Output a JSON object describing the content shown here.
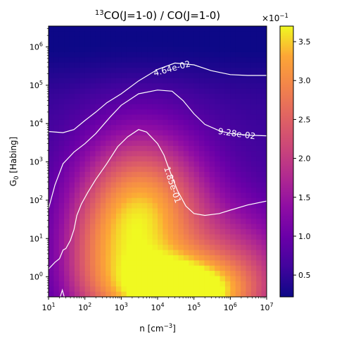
{
  "chart_data": {
    "type": "heatmap",
    "title_sup": "13",
    "title_main": "CO(J=1-0) / CO(J=1-0)",
    "xlabel_main": "n [cm",
    "xlabel_sup": "−3",
    "xlabel_end": "]",
    "ylabel_main": "G",
    "ylabel_sub": "0",
    "ylabel_end": " [Habing]",
    "x_scale": "log",
    "y_scale": "log",
    "xlim": [
      10,
      10000000
    ],
    "ylim": [
      0.3,
      3500000
    ],
    "x_ticks": [
      {
        "value": 10,
        "base": "10",
        "exp": "1"
      },
      {
        "value": 100,
        "base": "10",
        "exp": "2"
      },
      {
        "value": 1000,
        "base": "10",
        "exp": "3"
      },
      {
        "value": 10000,
        "base": "10",
        "exp": "4"
      },
      {
        "value": 100000,
        "base": "10",
        "exp": "5"
      },
      {
        "value": 1000000,
        "base": "10",
        "exp": "6"
      },
      {
        "value": 10000000,
        "base": "10",
        "exp": "7"
      }
    ],
    "y_ticks": [
      {
        "value": 1,
        "base": "10",
        "exp": "0"
      },
      {
        "value": 10,
        "base": "10",
        "exp": "1"
      },
      {
        "value": 100,
        "base": "10",
        "exp": "2"
      },
      {
        "value": 1000,
        "base": "10",
        "exp": "3"
      },
      {
        "value": 10000,
        "base": "10",
        "exp": "4"
      },
      {
        "value": 100000,
        "base": "10",
        "exp": "5"
      },
      {
        "value": 1000000,
        "base": "10",
        "exp": "6"
      }
    ],
    "colormap": "plasma",
    "colorbar": {
      "min": 0.22,
      "max": 3.7,
      "ticks": [
        "0.5",
        "1.0",
        "1.5",
        "2.0",
        "2.5",
        "3.0",
        "3.5"
      ],
      "tick_values": [
        0.5,
        1.0,
        1.5,
        2.0,
        2.5,
        3.0,
        3.5
      ],
      "multiplier_base": "×10",
      "multiplier_exp": "−1"
    },
    "contours": [
      {
        "level": 0.0464,
        "label": "4.64e-02",
        "points": [
          [
            10,
            6200
          ],
          [
            25,
            5800
          ],
          [
            50,
            7000
          ],
          [
            100,
            12000
          ],
          [
            200,
            20000
          ],
          [
            400,
            35000
          ],
          [
            1000,
            60000
          ],
          [
            3000,
            130000
          ],
          [
            10000,
            260000
          ],
          [
            30000,
            380000
          ],
          [
            100000,
            340000
          ],
          [
            300000,
            240000
          ],
          [
            1000000,
            190000
          ],
          [
            3000000,
            180000
          ],
          [
            10000000,
            180000
          ]
        ]
      },
      {
        "level": 0.0928,
        "label": "9.28e-02",
        "points": [
          [
            10,
            60
          ],
          [
            15,
            250
          ],
          [
            25,
            900
          ],
          [
            50,
            1800
          ],
          [
            100,
            3000
          ],
          [
            200,
            5500
          ],
          [
            500,
            15000
          ],
          [
            1000,
            30000
          ],
          [
            3000,
            60000
          ],
          [
            10000,
            75000
          ],
          [
            25000,
            70000
          ],
          [
            50000,
            40000
          ],
          [
            100000,
            18000
          ],
          [
            200000,
            9500
          ],
          [
            500000,
            6500
          ],
          [
            1000000,
            5500
          ],
          [
            3000000,
            5000
          ],
          [
            10000000,
            4800
          ]
        ]
      },
      {
        "level": 0.185,
        "label": "1.85e-01",
        "points": [
          [
            10,
            1.6
          ],
          [
            15,
            2.4
          ],
          [
            20,
            3.0
          ],
          [
            25,
            5
          ],
          [
            30,
            5.5
          ],
          [
            40,
            9
          ],
          [
            50,
            17
          ],
          [
            60,
            40
          ],
          [
            80,
            80
          ],
          [
            120,
            160
          ],
          [
            200,
            350
          ],
          [
            400,
            900
          ],
          [
            800,
            2500
          ],
          [
            1500,
            4500
          ],
          [
            3000,
            7000
          ],
          [
            5000,
            6000
          ],
          [
            10000,
            3000
          ],
          [
            15000,
            1500
          ],
          [
            20000,
            700
          ],
          [
            35000,
            180
          ],
          [
            60000,
            70
          ],
          [
            100000,
            45
          ],
          [
            200000,
            40
          ],
          [
            500000,
            45
          ],
          [
            1000000,
            55
          ],
          [
            3000000,
            75
          ],
          [
            10000000,
            95
          ]
        ]
      }
    ]
  }
}
